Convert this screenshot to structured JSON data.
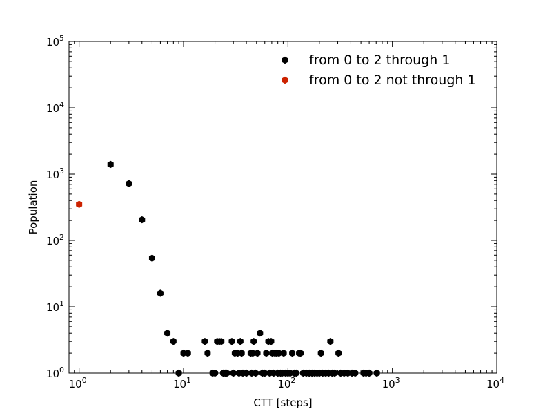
{
  "chart_data": {
    "type": "scatter",
    "title": "",
    "xlabel": "CTT [steps]",
    "ylabel": "Population",
    "xscale": "log",
    "yscale": "log",
    "xlim": [
      0.8,
      10000
    ],
    "ylim": [
      1,
      100000
    ],
    "x_ticks": [
      {
        "value": 1,
        "base": "10",
        "exp": "0"
      },
      {
        "value": 10,
        "base": "10",
        "exp": "1"
      },
      {
        "value": 100,
        "base": "10",
        "exp": "2"
      },
      {
        "value": 1000,
        "base": "10",
        "exp": "3"
      },
      {
        "value": 10000,
        "base": "10",
        "exp": "4"
      }
    ],
    "y_ticks": [
      {
        "value": 1,
        "base": "10",
        "exp": "0"
      },
      {
        "value": 10,
        "base": "10",
        "exp": "1"
      },
      {
        "value": 100,
        "base": "10",
        "exp": "2"
      },
      {
        "value": 1000,
        "base": "10",
        "exp": "3"
      },
      {
        "value": 10000,
        "base": "10",
        "exp": "4"
      },
      {
        "value": 100000,
        "base": "10",
        "exp": "5"
      }
    ],
    "grid": false,
    "legend_position": "top-right",
    "series": [
      {
        "name": "from 0 to 2 through 1",
        "color": "#000000",
        "marker": "hexagon",
        "points": [
          [
            2,
            1400
          ],
          [
            3,
            720
          ],
          [
            4,
            205
          ],
          [
            5,
            54
          ],
          [
            6,
            16
          ],
          [
            7,
            4
          ],
          [
            8,
            3
          ],
          [
            9,
            1
          ],
          [
            10,
            2
          ],
          [
            11,
            2
          ],
          [
            16,
            3
          ],
          [
            17,
            2
          ],
          [
            19,
            1
          ],
          [
            20,
            1
          ],
          [
            21,
            3
          ],
          [
            22,
            3
          ],
          [
            23,
            3
          ],
          [
            24,
            1
          ],
          [
            25,
            1
          ],
          [
            26,
            1
          ],
          [
            29,
            3
          ],
          [
            30,
            1
          ],
          [
            31,
            2
          ],
          [
            33,
            2
          ],
          [
            34,
            1
          ],
          [
            35,
            3
          ],
          [
            36,
            2
          ],
          [
            37,
            1
          ],
          [
            40,
            1
          ],
          [
            44,
            2
          ],
          [
            45,
            1
          ],
          [
            46,
            2
          ],
          [
            47,
            3
          ],
          [
            49,
            1
          ],
          [
            51,
            2
          ],
          [
            54,
            4
          ],
          [
            57,
            1
          ],
          [
            60,
            1
          ],
          [
            62,
            2
          ],
          [
            65,
            3
          ],
          [
            67,
            1
          ],
          [
            69,
            3
          ],
          [
            71,
            2
          ],
          [
            73,
            1
          ],
          [
            75,
            2
          ],
          [
            78,
            2
          ],
          [
            80,
            1
          ],
          [
            82,
            2
          ],
          [
            85,
            1
          ],
          [
            88,
            1
          ],
          [
            91,
            2
          ],
          [
            95,
            1
          ],
          [
            100,
            1
          ],
          [
            105,
            1
          ],
          [
            110,
            2
          ],
          [
            115,
            1
          ],
          [
            120,
            1
          ],
          [
            128,
            2
          ],
          [
            132,
            2
          ],
          [
            140,
            1
          ],
          [
            150,
            1
          ],
          [
            160,
            1
          ],
          [
            170,
            1
          ],
          [
            180,
            1
          ],
          [
            190,
            1
          ],
          [
            200,
            1
          ],
          [
            207,
            2
          ],
          [
            215,
            1
          ],
          [
            230,
            1
          ],
          [
            245,
            1
          ],
          [
            255,
            3
          ],
          [
            265,
            1
          ],
          [
            280,
            1
          ],
          [
            305,
            2
          ],
          [
            320,
            1
          ],
          [
            345,
            1
          ],
          [
            375,
            1
          ],
          [
            410,
            1
          ],
          [
            440,
            1
          ],
          [
            530,
            1
          ],
          [
            560,
            1
          ],
          [
            600,
            1
          ],
          [
            710,
            1
          ]
        ]
      },
      {
        "name": "from 0 to 2 not through 1",
        "color": "#cc2200",
        "marker": "hexagon",
        "points": [
          [
            1,
            350
          ]
        ]
      }
    ]
  }
}
